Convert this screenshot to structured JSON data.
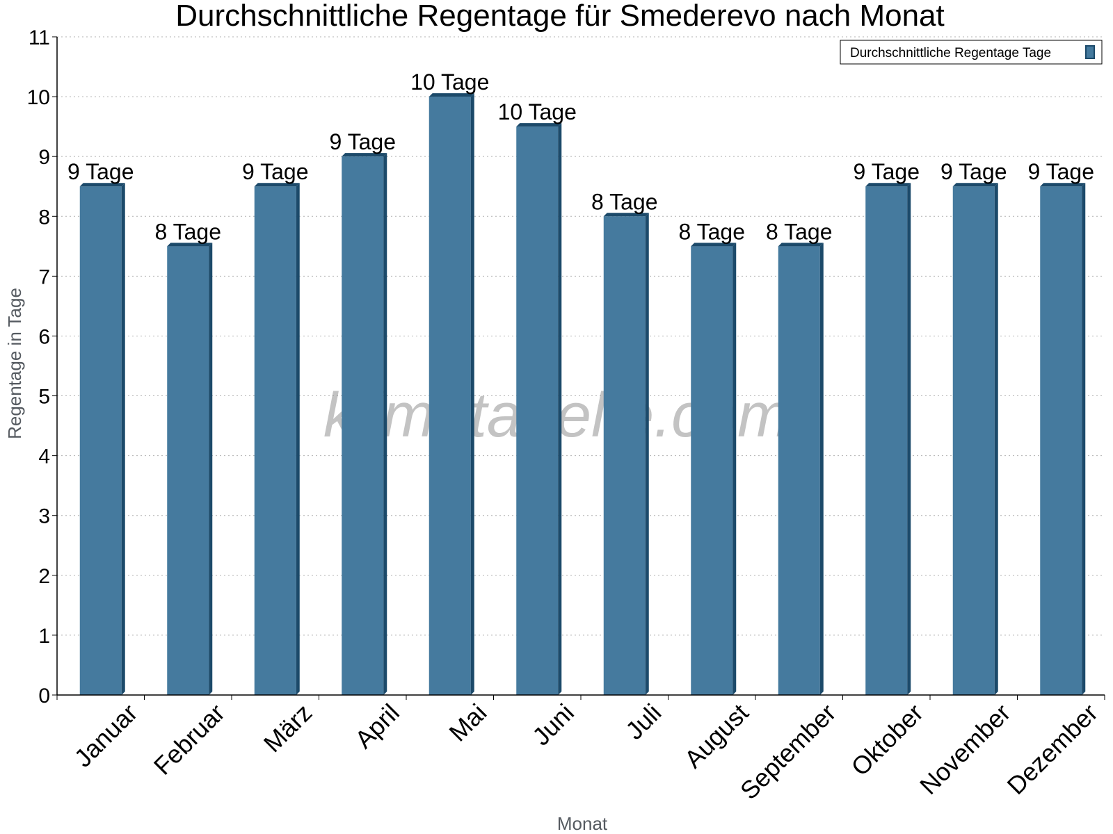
{
  "chart_data": {
    "type": "bar",
    "title": "Durchschnittliche Regentage für Smederevo nach Monat",
    "xlabel": "Monat",
    "ylabel": "Regentage in Tage",
    "ylim": [
      0,
      11
    ],
    "yticks": [
      0,
      1,
      2,
      3,
      4,
      5,
      6,
      7,
      8,
      9,
      10,
      11
    ],
    "grid": true,
    "legend_position": "top-right",
    "categories": [
      "Januar",
      "Februar",
      "März",
      "April",
      "Mai",
      "Juni",
      "Juli",
      "August",
      "September",
      "Oktober",
      "November",
      "Dezember"
    ],
    "series": [
      {
        "name": "Durchschnittliche Regentage Tage",
        "values": [
          8.5,
          7.5,
          8.5,
          9,
          10,
          9.5,
          8,
          7.5,
          7.5,
          8.5,
          8.5,
          8.5
        ],
        "data_labels": [
          "9 Tage",
          "8 Tage",
          "9 Tage",
          "9 Tage",
          "10 Tage",
          "10 Tage",
          "8 Tage",
          "8 Tage",
          "8 Tage",
          "9 Tage",
          "9 Tage",
          "9 Tage"
        ],
        "color": "#457a9e"
      }
    ],
    "colors": {
      "bar_front": "#457a9e",
      "bar_side": "#1c4a6a",
      "bar_top": "#1c4a6a"
    },
    "watermark": "klimatabelle.com"
  }
}
